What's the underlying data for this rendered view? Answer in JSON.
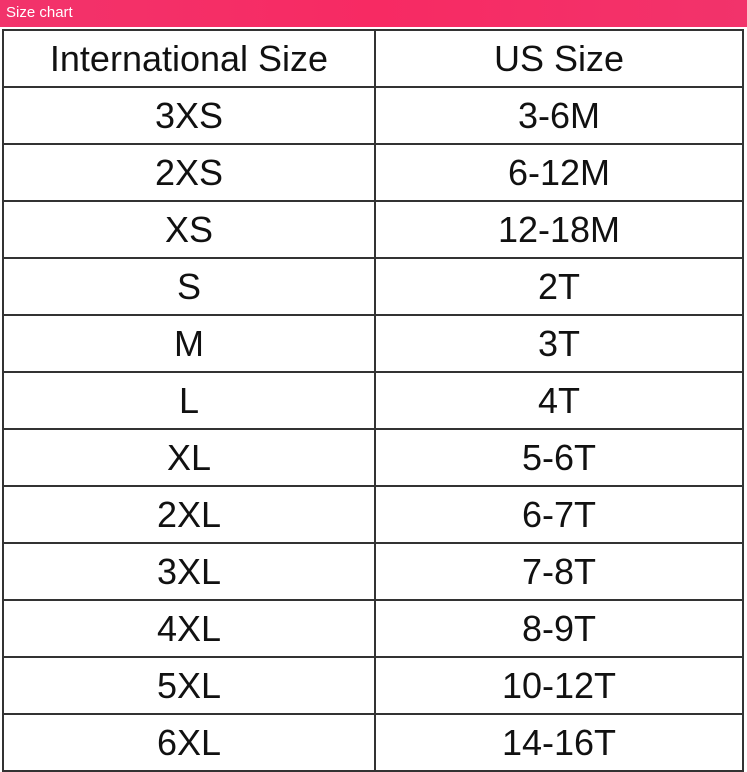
{
  "title": "Size chart",
  "accent_color": "#f2336b",
  "table": {
    "headers": [
      "International Size",
      "US Size"
    ],
    "rows": [
      [
        "3XS",
        "3-6M"
      ],
      [
        "2XS",
        "6-12M"
      ],
      [
        "XS",
        "12-18M"
      ],
      [
        "S",
        "2T"
      ],
      [
        "M",
        "3T"
      ],
      [
        "L",
        "4T"
      ],
      [
        "XL",
        "5-6T"
      ],
      [
        "2XL",
        "6-7T"
      ],
      [
        "3XL",
        "7-8T"
      ],
      [
        "4XL",
        "8-9T"
      ],
      [
        "5XL",
        "10-12T"
      ],
      [
        "6XL",
        "14-16T"
      ]
    ]
  }
}
